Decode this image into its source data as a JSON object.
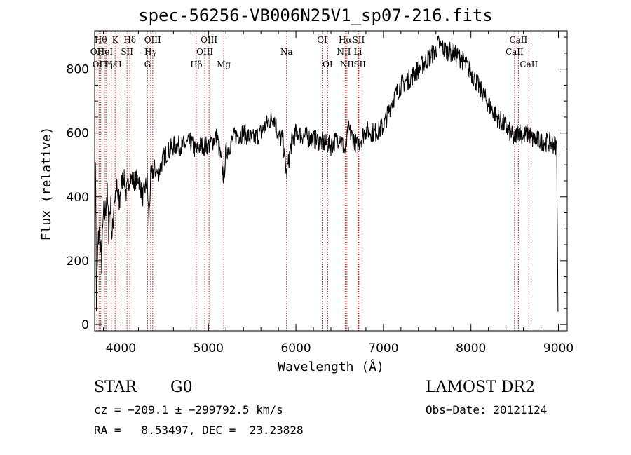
{
  "chart_data": {
    "type": "line",
    "title": "spec-56256-VB006N25V1_sp07-216.fits",
    "xlabel": "Wavelength (Å)",
    "ylabel": "Flux (relative)",
    "xlim": [
      3700,
      9100
    ],
    "ylim": [
      -20,
      920
    ],
    "xticks": [
      4000,
      5000,
      6000,
      7000,
      8000,
      9000
    ],
    "yticks": [
      0,
      200,
      400,
      600,
      800
    ],
    "line_color": "#000000",
    "marker_color": "#b22222",
    "grid": false,
    "legend": "none",
    "series": [
      {
        "x": [
          3700,
          3710,
          3720,
          3735,
          3750,
          3760,
          3780,
          3800,
          3820,
          3840,
          3860,
          3880,
          3900,
          3920,
          3950,
          3980,
          4000,
          4030,
          4060,
          4100,
          4150,
          4200,
          4250,
          4300,
          4320,
          4340,
          4380,
          4420,
          4460,
          4500,
          4600,
          4700,
          4800,
          4861,
          4900,
          5000,
          5100,
          5175,
          5200,
          5300,
          5400,
          5500,
          5600,
          5700,
          5750,
          5800,
          5850,
          5893,
          5950,
          6000,
          6100,
          6200,
          6300,
          6400,
          6500,
          6563,
          6600,
          6700,
          6800,
          6900,
          7000,
          7100,
          7200,
          7300,
          7400,
          7500,
          7600,
          7620,
          7700,
          7800,
          7900,
          8000,
          8100,
          8200,
          8300,
          8400,
          8498,
          8542,
          8600,
          8662,
          8700,
          8800,
          8900,
          8980,
          8995
        ],
        "y": [
          130,
          540,
          60,
          220,
          300,
          250,
          200,
          340,
          350,
          420,
          300,
          380,
          260,
          390,
          420,
          370,
          430,
          470,
          410,
          460,
          450,
          460,
          400,
          450,
          320,
          460,
          490,
          470,
          500,
          530,
          560,
          560,
          570,
          540,
          560,
          560,
          590,
          460,
          540,
          590,
          600,
          580,
          600,
          640,
          650,
          590,
          580,
          470,
          570,
          600,
          590,
          580,
          570,
          560,
          590,
          540,
          610,
          560,
          610,
          600,
          620,
          700,
          750,
          770,
          800,
          830,
          860,
          880,
          860,
          850,
          830,
          790,
          740,
          690,
          650,
          620,
          580,
          610,
          590,
          600,
          580,
          575,
          570,
          560,
          40
        ]
      }
    ],
    "lines": [
      {
        "x": 3727,
        "label": "OII",
        "row": 2
      },
      {
        "x": 3750,
        "label": "OII",
        "row": 3
      },
      {
        "x": 3770,
        "label": "Hθ",
        "row": 1
      },
      {
        "x": 3820,
        "label": "HeI",
        "row": 2
      },
      {
        "x": 3835,
        "label": "Hη",
        "row": 3
      },
      {
        "x": 3890,
        "label": "Hε",
        "row": 3
      },
      {
        "x": 3934,
        "label": "K",
        "row": 1
      },
      {
        "x": 3968,
        "label": "H",
        "row": 3
      },
      {
        "x": 4070,
        "label": "SII",
        "row": 2
      },
      {
        "x": 4102,
        "label": "Hδ",
        "row": 1
      },
      {
        "x": 4304,
        "label": "G",
        "row": 3
      },
      {
        "x": 4340,
        "label": "Hγ",
        "row": 2
      },
      {
        "x": 4363,
        "label": "OIII",
        "row": 1
      },
      {
        "x": 4861,
        "label": "Hβ",
        "row": 3
      },
      {
        "x": 4959,
        "label": "OIII",
        "row": 2
      },
      {
        "x": 5007,
        "label": "OIII",
        "row": 1
      },
      {
        "x": 5175,
        "label": "Mg",
        "row": 3
      },
      {
        "x": 5893,
        "label": "Na",
        "row": 2
      },
      {
        "x": 6300,
        "label": "OI",
        "row": 1
      },
      {
        "x": 6363,
        "label": "OI",
        "row": 3
      },
      {
        "x": 6548,
        "label": "NII",
        "row": 2
      },
      {
        "x": 6563,
        "label": "Hα",
        "row": 1
      },
      {
        "x": 6583,
        "label": "NII",
        "row": 3
      },
      {
        "x": 6708,
        "label": "Li",
        "row": 2
      },
      {
        "x": 6716,
        "label": "SII",
        "row": 1
      },
      {
        "x": 6730,
        "label": "SII",
        "row": 3
      },
      {
        "x": 8498,
        "label": "CaII",
        "row": 2
      },
      {
        "x": 8542,
        "label": "CaII",
        "row": 1
      },
      {
        "x": 8662,
        "label": "CaII",
        "row": 3
      }
    ]
  },
  "info": {
    "object_class": "STAR",
    "subclass": "G0",
    "survey": "LAMOST DR2",
    "velocity": "cz = −209.1 ± −299792.5 km/s",
    "obs_date": "Obs−Date: 20121124",
    "coords": "RA =   8.53497, DEC =  23.23828"
  }
}
